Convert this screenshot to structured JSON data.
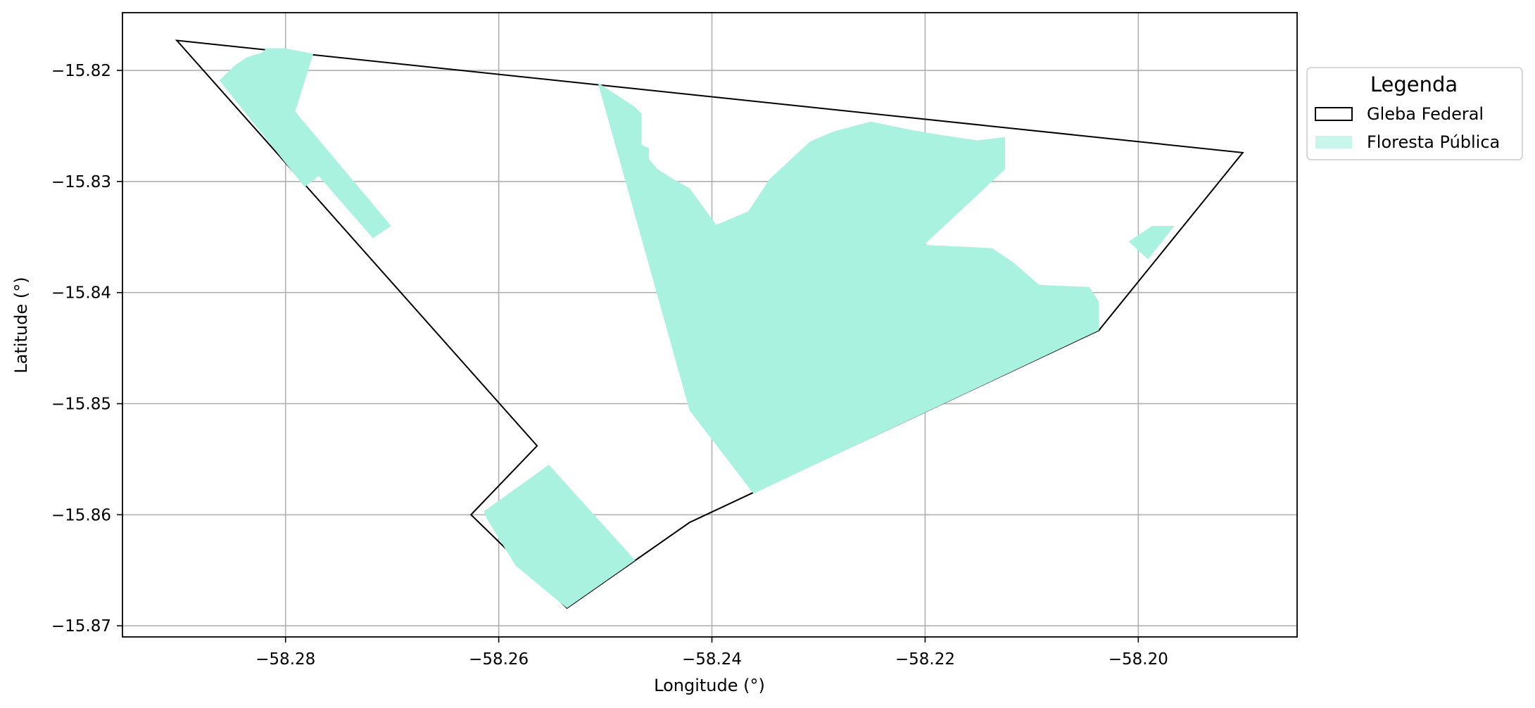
{
  "chart_data": {
    "type": "map",
    "xlabel": "Longitude (°)",
    "ylabel": "Latitude (°)",
    "xlim": [
      -58.2953,
      -58.1851
    ],
    "ylim": [
      -15.871,
      -15.8148
    ],
    "xticks": [
      -58.28,
      -58.26,
      -58.24,
      -58.22,
      -58.2
    ],
    "yticks": [
      -15.82,
      -15.83,
      -15.84,
      -15.85,
      -15.86,
      -15.87
    ],
    "xtick_labels": [
      "−58.28",
      "−58.26",
      "−58.24",
      "−58.22",
      "−58.20"
    ],
    "ytick_labels": [
      "−15.82",
      "−15.83",
      "−15.84",
      "−15.85",
      "−15.86",
      "−15.87"
    ],
    "grid": true,
    "legend": {
      "title": "Legenda",
      "placement": "outside-right-top",
      "entries": [
        {
          "label": "Gleba Federal",
          "style": "outline",
          "edge_color": "#000000",
          "fill_color": "none"
        },
        {
          "label": "Floresta Pública",
          "style": "fill",
          "edge_color": "none",
          "fill_color": "#a8f2df"
        }
      ]
    },
    "layers": [
      {
        "name": "Gleba Federal",
        "kind": "outline",
        "edge_color": "#000000",
        "polygons": [
          [
            [
              -58.2902,
              -15.8173
            ],
            [
              -58.1902,
              -15.8274
            ],
            [
              -58.2037,
              -15.8434
            ],
            [
              -58.2421,
              -15.8607
            ],
            [
              -58.2536,
              -15.8684
            ],
            [
              -58.2626,
              -15.86
            ],
            [
              -58.2564,
              -15.8538
            ],
            [
              -58.2902,
              -15.8173
            ]
          ]
        ]
      },
      {
        "name": "Floresta Pública",
        "kind": "fill",
        "fill_color": "#a8f2df",
        "polygons": [
          [
            [
              -58.2862,
              -15.8209
            ],
            [
              -58.2847,
              -15.8195
            ],
            [
              -58.2836,
              -15.8188
            ],
            [
              -58.2822,
              -15.8184
            ],
            [
              -58.2818,
              -15.818
            ],
            [
              -58.2801,
              -15.818
            ],
            [
              -58.2774,
              -15.8185
            ],
            [
              -58.2791,
              -15.8237
            ],
            [
              -58.2701,
              -15.834
            ],
            [
              -58.2718,
              -15.8351
            ],
            [
              -58.2769,
              -15.8295
            ],
            [
              -58.2782,
              -15.8305
            ],
            [
              -58.2862,
              -15.8209
            ]
          ],
          [
            [
              -58.2507,
              -15.8211
            ],
            [
              -58.2472,
              -15.8233
            ],
            [
              -58.2466,
              -15.8239
            ],
            [
              -58.2466,
              -15.8267
            ],
            [
              -58.2459,
              -15.827
            ],
            [
              -58.2459,
              -15.828
            ],
            [
              -58.2451,
              -15.8289
            ],
            [
              -58.2436,
              -15.8298
            ],
            [
              -58.2421,
              -15.8306
            ],
            [
              -58.2396,
              -15.8339
            ],
            [
              -58.2366,
              -15.8327
            ],
            [
              -58.2346,
              -15.8298
            ],
            [
              -58.2308,
              -15.8264
            ],
            [
              -58.2286,
              -15.8255
            ],
            [
              -58.2251,
              -15.8246
            ],
            [
              -58.2211,
              -15.8254
            ],
            [
              -58.2186,
              -15.8258
            ],
            [
              -58.2151,
              -15.8263
            ],
            [
              -58.2125,
              -15.826
            ],
            [
              -58.2125,
              -15.8289
            ],
            [
              -58.2201,
              -15.8357
            ],
            [
              -58.2137,
              -15.836
            ],
            [
              -58.2131,
              -15.8364
            ],
            [
              -58.2117,
              -15.8373
            ],
            [
              -58.2093,
              -15.8393
            ],
            [
              -58.2071,
              -15.8394
            ],
            [
              -58.2046,
              -15.8395
            ],
            [
              -58.2037,
              -15.8408
            ],
            [
              -58.2037,
              -15.8434
            ],
            [
              -58.2361,
              -15.8581
            ],
            [
              -58.2421,
              -15.8506
            ],
            [
              -58.2507,
              -15.8211
            ]
          ],
          [
            [
              -58.2553,
              -15.8555
            ],
            [
              -58.2614,
              -15.8597
            ],
            [
              -58.2611,
              -15.8604
            ],
            [
              -58.2584,
              -15.8646
            ],
            [
              -58.2536,
              -15.8684
            ],
            [
              -58.2472,
              -15.8641
            ],
            [
              -58.2553,
              -15.8555
            ]
          ],
          [
            [
              -58.1966,
              -15.834
            ],
            [
              -58.1987,
              -15.834
            ],
            [
              -58.2009,
              -15.8354
            ],
            [
              -58.1991,
              -15.837
            ],
            [
              -58.1966,
              -15.834
            ]
          ]
        ]
      }
    ]
  }
}
